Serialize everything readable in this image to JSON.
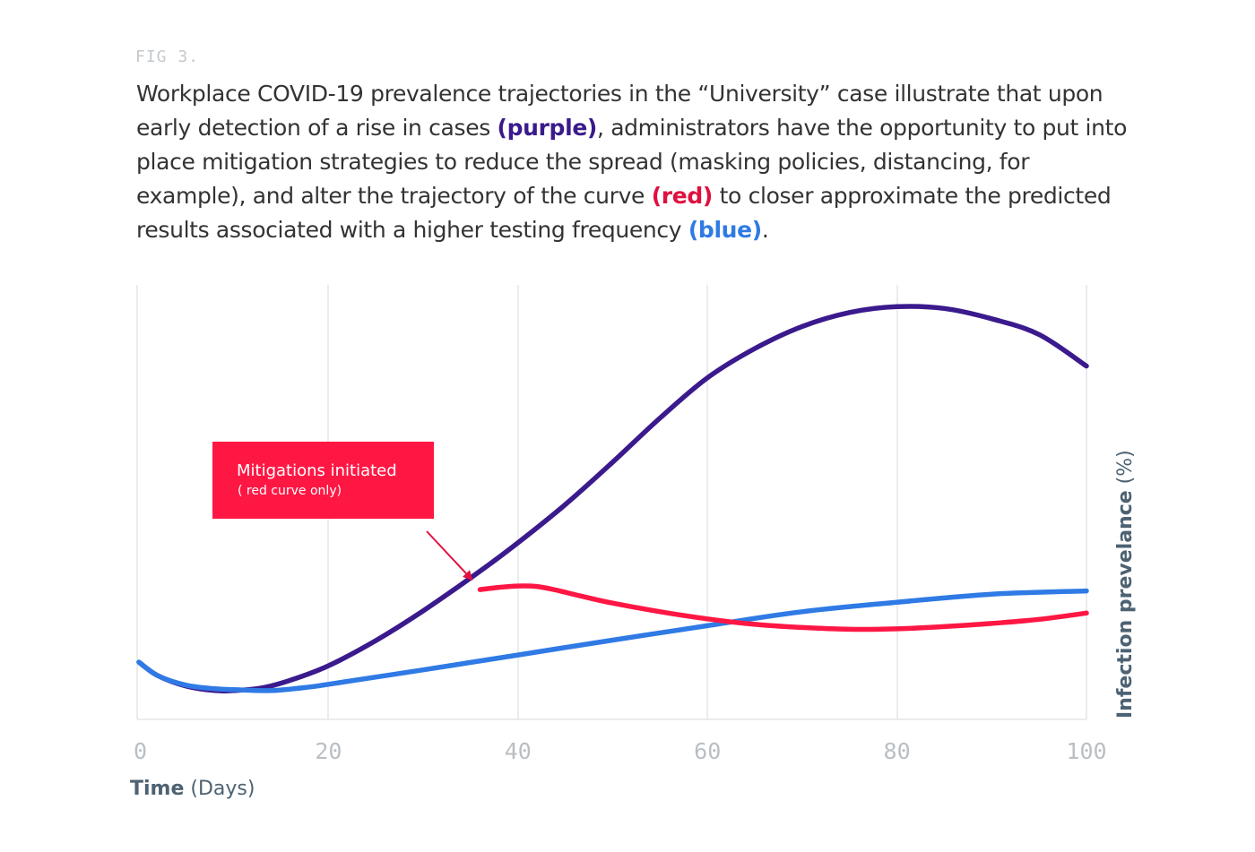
{
  "figure": {
    "label": "FIG 3.",
    "caption": [
      {
        "text": "Workplace COVID-19 prevalence trajectories in the “University” case illustrate that upon early detection of a rise in cases "
      },
      {
        "text": "(purple)",
        "bold": true,
        "color": "#3a1a8c"
      },
      {
        "text": ", administrators have the opportunity to put into place mitigation strategies to reduce the spread (masking policies, distancing, for example), and alter the trajectory of the curve "
      },
      {
        "text": "(red)",
        "bold": true,
        "color": "#e0103f"
      },
      {
        "text": " to closer approximate the predicted results associated with a higher testing frequency "
      },
      {
        "text": "(blue)",
        "bold": true,
        "color": "#2f7ae5"
      },
      {
        "text": "."
      }
    ]
  },
  "colors": {
    "purple": "#3a1a8c",
    "red": "#ff1744",
    "blue": "#2f7ae5",
    "grid": "#e3e6e8",
    "axis_title": "#4d6272",
    "tick": "#b9bfc4"
  },
  "chart_data": {
    "type": "line",
    "xlabel": {
      "bold": "Time",
      "rest": " (Days)"
    },
    "ylabel": {
      "bold": "Infection prevelance",
      "rest": " (%)"
    },
    "xlim": [
      0,
      100
    ],
    "ylim": [
      0,
      100
    ],
    "xticks": [
      0,
      20,
      40,
      60,
      80,
      100
    ],
    "grid": "vertical",
    "legend": "none",
    "series": [
      {
        "color": "purple",
        "x": [
          0,
          2,
          5,
          8,
          10,
          13,
          16,
          20,
          25,
          30,
          36,
          40,
          45,
          50,
          55,
          60,
          65,
          70,
          75,
          80,
          85,
          90,
          95,
          100
        ],
        "y": [
          12.7,
          9.7,
          7.4,
          6.4,
          6.4,
          7.0,
          8.7,
          11.9,
          17.5,
          24.1,
          32.9,
          39.2,
          47.7,
          57.1,
          66.9,
          75.8,
          82.3,
          87.2,
          90.3,
          91.6,
          91.2,
          88.9,
          85.4,
          78.4
        ]
      },
      {
        "color": "blue",
        "x": [
          0,
          2,
          5,
          8,
          10,
          14,
          18,
          20,
          30,
          40,
          50,
          60,
          70,
          80,
          90,
          100
        ],
        "y": [
          12.7,
          9.7,
          7.6,
          6.8,
          6.6,
          6.4,
          7.2,
          7.8,
          11.0,
          14.3,
          17.6,
          20.8,
          23.9,
          26.0,
          27.8,
          28.5
        ]
      },
      {
        "color": "red",
        "x": [
          36,
          38,
          40,
          42,
          44,
          47,
          50,
          55,
          60,
          65,
          70,
          75,
          80,
          85,
          90,
          95,
          100
        ],
        "y": [
          28.8,
          29.3,
          29.6,
          29.5,
          28.7,
          27.2,
          25.8,
          23.9,
          22.3,
          21.1,
          20.4,
          20.0,
          20.1,
          20.6,
          21.3,
          22.2,
          23.6
        ]
      }
    ],
    "annotation": {
      "title": "Mitigations initiated",
      "subtitle": "( red curve only)",
      "target_x": 36
    }
  }
}
